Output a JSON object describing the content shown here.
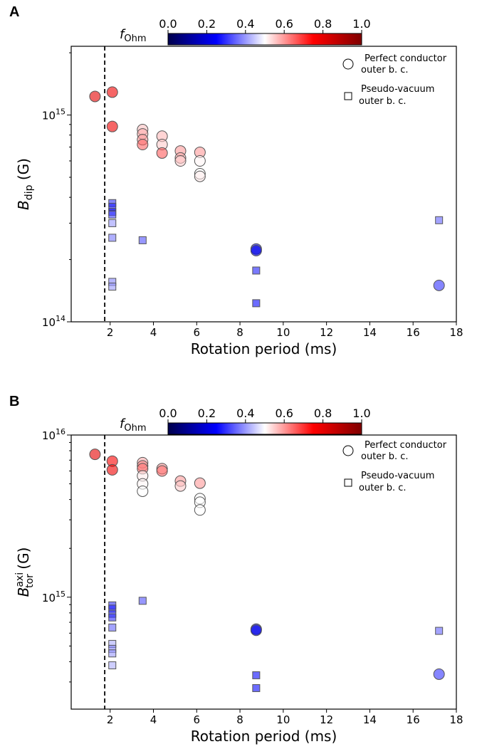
{
  "colorscale": {
    "label_main": "f",
    "label_sub": "Ohm",
    "ticks": [
      "0.0",
      "0.2",
      "0.4",
      "0.6",
      "0.8",
      "1.0"
    ],
    "stops": [
      "#00004c",
      "#0000ff",
      "#ffffff",
      "#ff0000",
      "#7f0000"
    ]
  },
  "legend": {
    "pc_line1": "Perfect conductor",
    "pc_line2": "outer b. c.",
    "pv_line1": "Pseudo-vacuum",
    "pv_line2": "outer b. c."
  },
  "chart_data": [
    {
      "panel": "A",
      "type": "scatter",
      "xlabel": "Rotation period (ms)",
      "ylabel_main": "B",
      "ylabel_sub": "dip",
      "ylabel_unit": "(G)",
      "xlim": [
        0.2,
        18
      ],
      "ylim": [
        100000000000000.0,
        2150000000000000.0
      ],
      "yscale": "log",
      "xticks": [
        "2",
        "4",
        "6",
        "8",
        "10",
        "12",
        "14",
        "16",
        "18"
      ],
      "yticks": [
        {
          "base": "10",
          "exp": "15",
          "value": 1000000000000000.0
        },
        {
          "base": "10",
          "exp": "14",
          "value": 100000000000000.0
        }
      ],
      "vline_x": 1.75,
      "series": [
        {
          "marker": "circle",
          "points": [
            {
              "x": 1.3,
              "y": 1230000000000000.0,
              "f": 0.8
            },
            {
              "x": 2.1,
              "y": 1290000000000000.0,
              "f": 0.78
            },
            {
              "x": 2.1,
              "y": 880000000000000.0,
              "f": 0.78
            },
            {
              "x": 3.5,
              "y": 850000000000000.0,
              "f": 0.56
            },
            {
              "x": 3.5,
              "y": 810000000000000.0,
              "f": 0.58
            },
            {
              "x": 3.5,
              "y": 760000000000000.0,
              "f": 0.6
            },
            {
              "x": 3.5,
              "y": 720000000000000.0,
              "f": 0.65
            },
            {
              "x": 4.4,
              "y": 790000000000000.0,
              "f": 0.57
            },
            {
              "x": 4.4,
              "y": 720000000000000.0,
              "f": 0.55
            },
            {
              "x": 4.4,
              "y": 655000000000000.0,
              "f": 0.66
            },
            {
              "x": 5.25,
              "y": 670000000000000.0,
              "f": 0.6
            },
            {
              "x": 5.25,
              "y": 620000000000000.0,
              "f": 0.58
            },
            {
              "x": 5.25,
              "y": 600000000000000.0,
              "f": 0.55
            },
            {
              "x": 6.15,
              "y": 660000000000000.0,
              "f": 0.6
            },
            {
              "x": 6.15,
              "y": 600000000000000.0,
              "f": 0.51
            },
            {
              "x": 6.15,
              "y": 520000000000000.0,
              "f": 0.5
            },
            {
              "x": 6.15,
              "y": 505000000000000.0,
              "f": 0.52
            },
            {
              "x": 8.75,
              "y": 225000000000000.0,
              "f": 0.22
            },
            {
              "x": 8.75,
              "y": 221000000000000.0,
              "f": 0.22
            },
            {
              "x": 17.2,
              "y": 150000000000000.0,
              "f": 0.3
            }
          ]
        },
        {
          "marker": "square",
          "points": [
            {
              "x": 2.1,
              "y": 375000000000000.0,
              "f": 0.3
            },
            {
              "x": 2.1,
              "y": 360000000000000.0,
              "f": 0.28
            },
            {
              "x": 2.1,
              "y": 340000000000000.0,
              "f": 0.27
            },
            {
              "x": 2.1,
              "y": 330000000000000.0,
              "f": 0.32
            },
            {
              "x": 2.1,
              "y": 300000000000000.0,
              "f": 0.4
            },
            {
              "x": 2.1,
              "y": 255000000000000.0,
              "f": 0.37
            },
            {
              "x": 2.1,
              "y": 156000000000000.0,
              "f": 0.38
            },
            {
              "x": 2.1,
              "y": 148000000000000.0,
              "f": 0.4
            },
            {
              "x": 3.5,
              "y": 248000000000000.0,
              "f": 0.33
            },
            {
              "x": 8.75,
              "y": 177000000000000.0,
              "f": 0.28
            },
            {
              "x": 8.75,
              "y": 123000000000000.0,
              "f": 0.26
            },
            {
              "x": 17.2,
              "y": 310000000000000.0,
              "f": 0.35
            }
          ]
        }
      ]
    },
    {
      "panel": "B",
      "type": "scatter",
      "xlabel": "Rotation period (ms)",
      "ylabel_main": "B",
      "ylabel_sub": "tor",
      "ylabel_sup": "axi",
      "ylabel_unit": "(G)",
      "xlim": [
        0.2,
        18
      ],
      "ylim": [
        204000000000000.0,
        1e+16
      ],
      "yscale": "log",
      "xticks": [
        "2",
        "4",
        "6",
        "8",
        "10",
        "12",
        "14",
        "16",
        "18"
      ],
      "yticks": [
        {
          "base": "10",
          "exp": "16",
          "value": 1e+16
        },
        {
          "base": "10",
          "exp": "15",
          "value": 1000000000000000.0
        }
      ],
      "vline_x": 1.75,
      "series": [
        {
          "marker": "circle",
          "points": [
            {
              "x": 1.3,
              "y": 7600000000000000.0,
              "f": 0.8
            },
            {
              "x": 2.1,
              "y": 6900000000000000.0,
              "f": 0.76
            },
            {
              "x": 2.1,
              "y": 6100000000000000.0,
              "f": 0.78
            },
            {
              "x": 3.5,
              "y": 6750000000000000.0,
              "f": 0.58
            },
            {
              "x": 3.5,
              "y": 6450000000000000.0,
              "f": 0.62
            },
            {
              "x": 3.5,
              "y": 6200000000000000.0,
              "f": 0.63
            },
            {
              "x": 3.5,
              "y": 5600000000000000.0,
              "f": 0.52
            },
            {
              "x": 3.5,
              "y": 5000000000000000.0,
              "f": 0.51
            },
            {
              "x": 3.5,
              "y": 4500000000000000.0,
              "f": 0.5
            },
            {
              "x": 4.4,
              "y": 6200000000000000.0,
              "f": 0.6
            },
            {
              "x": 4.4,
              "y": 6000000000000000.0,
              "f": 0.64
            },
            {
              "x": 5.25,
              "y": 5200000000000000.0,
              "f": 0.6
            },
            {
              "x": 5.25,
              "y": 4850000000000000.0,
              "f": 0.55
            },
            {
              "x": 6.15,
              "y": 5050000000000000.0,
              "f": 0.6
            },
            {
              "x": 6.15,
              "y": 4050000000000000.0,
              "f": 0.5
            },
            {
              "x": 6.15,
              "y": 3850000000000000.0,
              "f": 0.5
            },
            {
              "x": 6.15,
              "y": 3450000000000000.0,
              "f": 0.5
            },
            {
              "x": 8.75,
              "y": 635000000000000.0,
              "f": 0.22
            },
            {
              "x": 8.75,
              "y": 625000000000000.0,
              "f": 0.22
            },
            {
              "x": 17.2,
              "y": 335000000000000.0,
              "f": 0.3
            }
          ]
        },
        {
          "marker": "square",
          "points": [
            {
              "x": 2.1,
              "y": 890000000000000.0,
              "f": 0.3
            },
            {
              "x": 2.1,
              "y": 850000000000000.0,
              "f": 0.28
            },
            {
              "x": 2.1,
              "y": 790000000000000.0,
              "f": 0.3
            },
            {
              "x": 2.1,
              "y": 750000000000000.0,
              "f": 0.3
            },
            {
              "x": 2.1,
              "y": 650000000000000.0,
              "f": 0.35
            },
            {
              "x": 2.1,
              "y": 515000000000000.0,
              "f": 0.42
            },
            {
              "x": 2.1,
              "y": 480000000000000.0,
              "f": 0.38
            },
            {
              "x": 2.1,
              "y": 450000000000000.0,
              "f": 0.4
            },
            {
              "x": 2.1,
              "y": 380000000000000.0,
              "f": 0.42
            },
            {
              "x": 3.5,
              "y": 950000000000000.0,
              "f": 0.33
            },
            {
              "x": 8.75,
              "y": 330000000000000.0,
              "f": 0.26
            },
            {
              "x": 8.75,
              "y": 275000000000000.0,
              "f": 0.26
            },
            {
              "x": 17.2,
              "y": 620000000000000.0,
              "f": 0.35
            }
          ]
        }
      ]
    }
  ]
}
